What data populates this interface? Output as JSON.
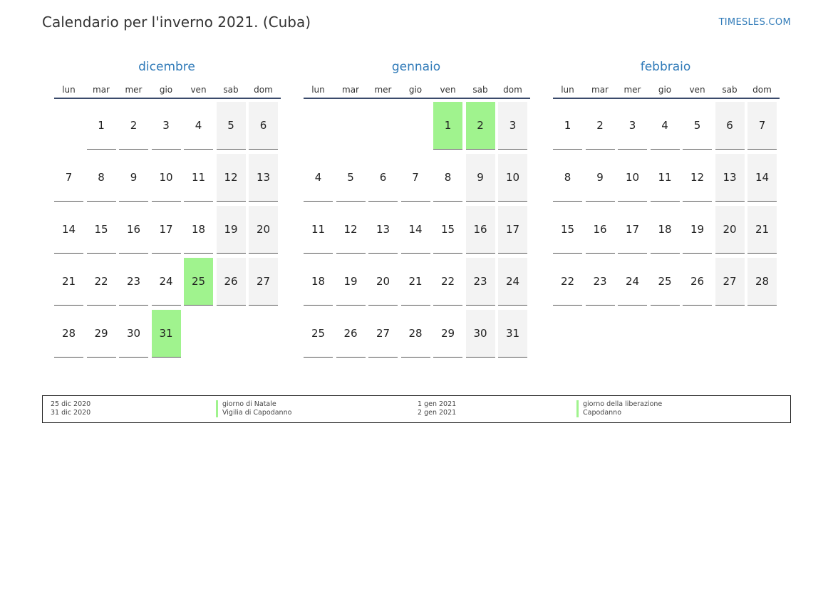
{
  "header": {
    "title": "Calendario per l'inverno 2021. (Cuba)",
    "site": "TIMESLES.COM"
  },
  "weekdays": [
    "lun",
    "mar",
    "mer",
    "gio",
    "ven",
    "sab",
    "dom"
  ],
  "months": [
    {
      "name": "dicembre",
      "start_offset": 1,
      "days": 31,
      "holidays": [
        25,
        31
      ]
    },
    {
      "name": "gennaio",
      "start_offset": 4,
      "days": 31,
      "holidays": [
        1,
        2
      ]
    },
    {
      "name": "febbraio",
      "start_offset": 0,
      "days": 28,
      "holidays": []
    }
  ],
  "legend": {
    "col1": [
      {
        "date": "25 dic 2020",
        "name": "giorno di Natale"
      },
      {
        "date": "31 dic 2020",
        "name": "Vigilia di Capodanno"
      }
    ],
    "col2": [
      {
        "date": "1 gen 2021",
        "name": "giorno della liberazione"
      },
      {
        "date": "2 gen 2021",
        "name": "Capodanno"
      }
    ]
  },
  "colors": {
    "accent": "#2f7ab8",
    "holiday": "#a0f38e",
    "weekend": "#f3f3f3"
  }
}
